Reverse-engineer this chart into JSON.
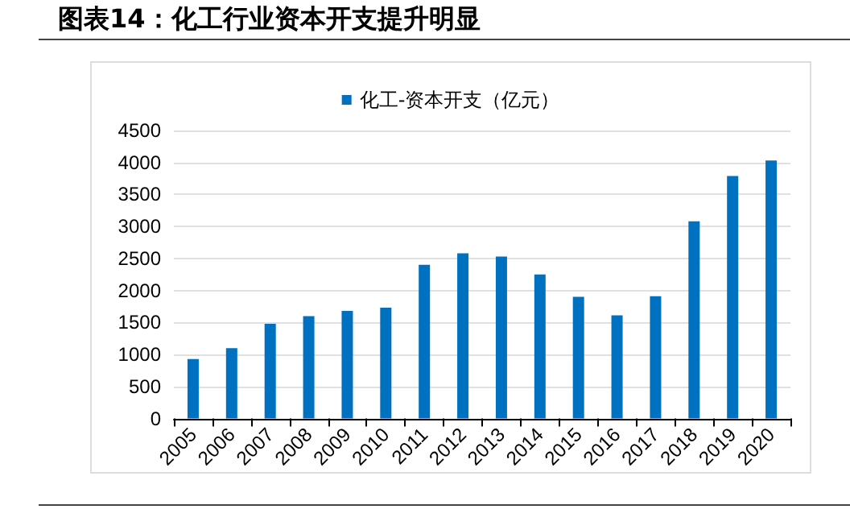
{
  "chart_data": {
    "type": "bar",
    "title": "图表14：化工行业资本开支提升明显",
    "categories": [
      "2005",
      "2006",
      "2007",
      "2008",
      "2009",
      "2010",
      "2011",
      "2012",
      "2013",
      "2014",
      "2015",
      "2016",
      "2017",
      "2018",
      "2019",
      "2020"
    ],
    "series": [
      {
        "name": "化工-资本开支（亿元）",
        "color": "#0070c0",
        "values": [
          930,
          1100,
          1480,
          1600,
          1680,
          1730,
          2400,
          2580,
          2530,
          2250,
          1900,
          1610,
          1910,
          3080,
          3790,
          4030
        ]
      }
    ],
    "ylim": [
      0,
      4500
    ],
    "yticks": [
      0,
      500,
      1000,
      1500,
      2000,
      2500,
      3000,
      3500,
      4000,
      4500
    ],
    "grid": "y",
    "legend": "top"
  }
}
